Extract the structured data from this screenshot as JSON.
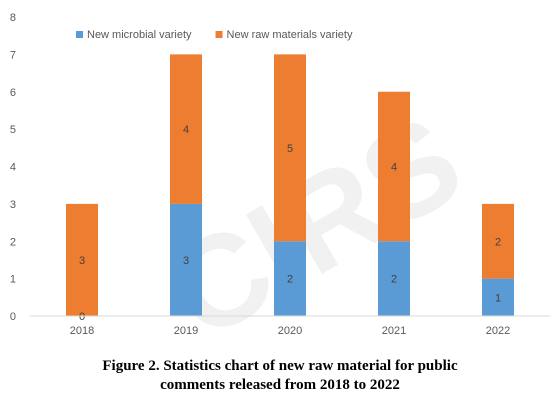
{
  "chart_data": {
    "type": "bar",
    "stacked": true,
    "categories": [
      "2018",
      "2019",
      "2020",
      "2021",
      "2022"
    ],
    "series": [
      {
        "name": "New microbial variety",
        "values": [
          0,
          3,
          2,
          2,
          1
        ],
        "color": "#5b9bd5"
      },
      {
        "name": "New raw materials variety",
        "values": [
          3,
          4,
          5,
          4,
          2
        ],
        "color": "#ed7d31"
      }
    ],
    "ylim": [
      0,
      8
    ],
    "yticks": [
      0,
      1,
      2,
      3,
      4,
      5,
      6,
      7,
      8
    ],
    "grid": false,
    "legend": "top-left",
    "title": "",
    "xlabel": "",
    "ylabel": ""
  },
  "watermark": "CIRS",
  "caption": {
    "line1": "Figure 2. Statistics chart of new raw material for public",
    "line2": "comments released from 2018 to 2022"
  }
}
